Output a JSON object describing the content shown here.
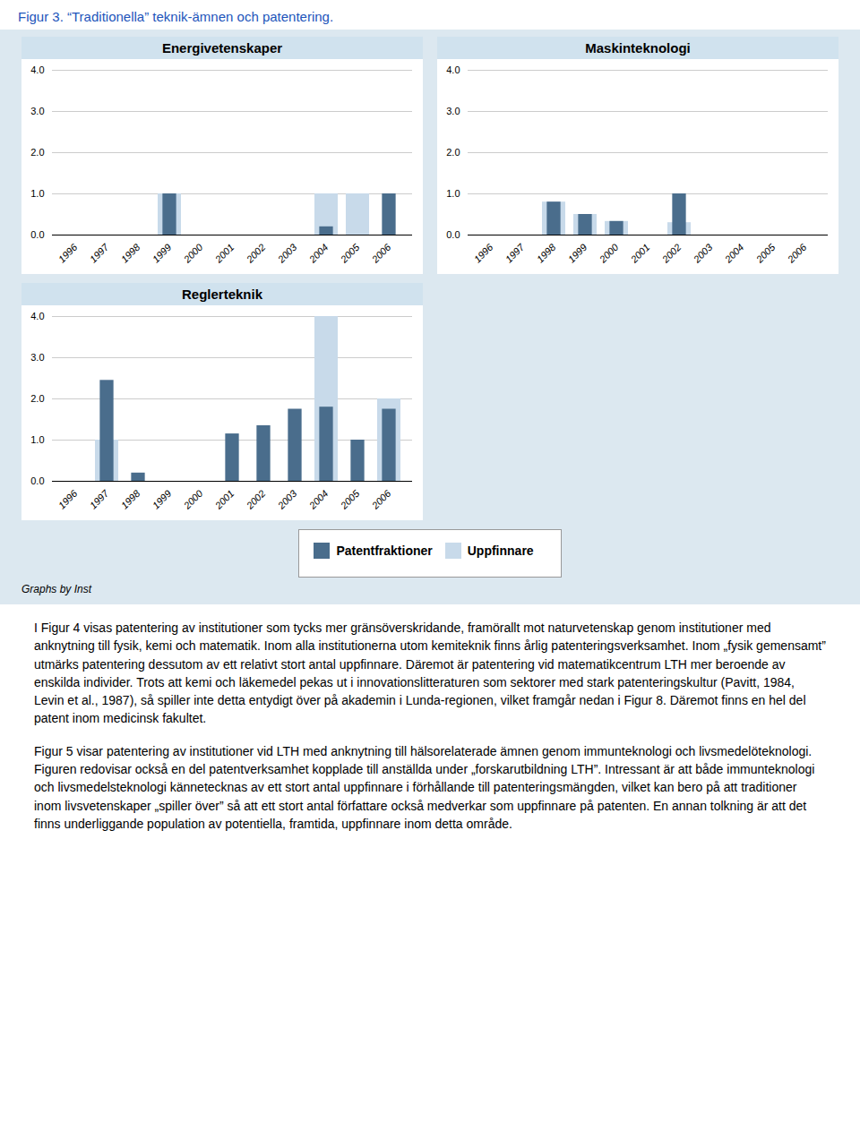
{
  "title": "Figur 3. “Traditionella” teknik-ämnen och patentering.",
  "annotations": [
    "Graphs by Inst",
    "I Figur 4 visas patentering av institutioner som tycks mer gränsöverskridande, framörallt mot naturvetenskap genom institutioner med anknytning till fysik, kemi och matematik. Inom alla institutionerna utom kemiteknik finns årlig patenteringsverksamhet. Inom „fysik gemensamt” utmärks patentering dessutom av ett relativt stort antal uppfinnare. Däremot är patentering vid matematikcentrum LTH mer beroende av enskilda individer. Trots att kemi och läkemedel pekas ut i innovationslitteraturen som sektorer med stark patenteringskultur (Pavitt, 1984, Levin et al., 1987), så spiller inte detta entydigt över på akademin i Lunda-regionen, vilket framgår nedan i Figur 8. Däremot finns en hel del patent inom medicinsk fakultet.",
    "Figur 5 visar patentering av institutioner vid LTH med anknytning till hälsorelaterade ämnen genom immunteknologi och livsmedelöteknologi. Figuren redovisar också en del patentverksamhet kopplade till anställda under „forskarutbildning LTH”. Intressant är att både immunteknologi och livsmedelsteknologi kännetecknas av ett stort antal uppfinnare i förhållande till patenterings­mängden, vilket kan bero på att traditioner inom livsvetenskaper „spiller över” så att ett stort antal författare också medverkar som uppfinnare på patenten. En annan tolkning är att det finns underliggande population av potentiella, framtida, uppfinnare inom detta område."
  ],
  "chart_data": [
    {
      "type": "bar",
      "title": "Energivetenskaper",
      "categories": [
        "1996",
        "1997",
        "1998",
        "1999",
        "2000",
        "2001",
        "2002",
        "2003",
        "2004",
        "2005",
        "2006"
      ],
      "series": [
        {
          "name": "Patentfraktioner",
          "color": "#4a6d8c",
          "values": [
            0,
            0,
            0,
            1.0,
            0,
            0,
            0,
            0,
            0.2,
            0,
            1.0
          ]
        },
        {
          "name": "Uppfinnare",
          "color": "#c8daea",
          "values": [
            0,
            0,
            0,
            1.0,
            0,
            0,
            0,
            0,
            1.0,
            1.0,
            0
          ]
        }
      ],
      "ylim": [
        0,
        4
      ],
      "yticks": [
        0,
        1,
        2,
        3,
        4
      ],
      "grid": true
    },
    {
      "type": "bar",
      "title": "Maskinteknologi",
      "categories": [
        "1996",
        "1997",
        "1998",
        "1999",
        "2000",
        "2001",
        "2002",
        "2003",
        "2004",
        "2005",
        "2006"
      ],
      "series": [
        {
          "name": "Patentfraktioner",
          "color": "#4a6d8c",
          "values": [
            0,
            0,
            0.8,
            0.5,
            0.33,
            0,
            1.0,
            0,
            0,
            0,
            0
          ]
        },
        {
          "name": "Uppfinnare",
          "color": "#c8daea",
          "values": [
            0,
            0,
            0.8,
            0.5,
            0.33,
            0,
            0.3,
            0,
            0,
            0,
            0
          ]
        }
      ],
      "ylim": [
        0,
        4
      ],
      "yticks": [
        0,
        1,
        2,
        3,
        4
      ],
      "grid": true
    },
    {
      "type": "bar",
      "title": "Reglerteknik",
      "categories": [
        "1996",
        "1997",
        "1998",
        "1999",
        "2000",
        "2001",
        "2002",
        "2003",
        "2004",
        "2005",
        "2006"
      ],
      "series": [
        {
          "name": "Patentfraktioner",
          "color": "#4a6d8c",
          "values": [
            0,
            2.45,
            0.2,
            0,
            0,
            1.15,
            1.35,
            1.75,
            1.8,
            1.0,
            1.75
          ]
        },
        {
          "name": "Uppfinnare",
          "color": "#c8daea",
          "values": [
            0,
            1.0,
            0,
            0,
            0,
            0,
            0,
            0,
            4.0,
            0,
            2.0
          ]
        }
      ],
      "ylim": [
        0,
        4
      ],
      "yticks": [
        0,
        1,
        2,
        3,
        4
      ],
      "grid": true
    }
  ]
}
